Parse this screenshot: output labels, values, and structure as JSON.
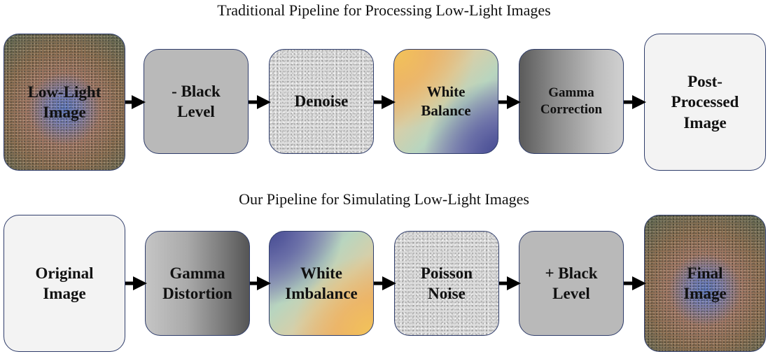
{
  "top_pipeline": {
    "title": "Traditional Pipeline for Processing Low-Light Images",
    "steps": [
      {
        "label": "Low-Light\nImage"
      },
      {
        "label": "- Black\nLevel"
      },
      {
        "label": "Denoise"
      },
      {
        "label": "White\nBalance"
      },
      {
        "label": "Gamma\nCorrection"
      },
      {
        "label": "Post-\nProcessed\nImage"
      }
    ]
  },
  "bottom_pipeline": {
    "title": "Our Pipeline for Simulating Low-Light Images",
    "steps": [
      {
        "label": "Original\nImage"
      },
      {
        "label": "Gamma\nDistortion"
      },
      {
        "label": "White\nImbalance"
      },
      {
        "label": "Poisson\nNoise"
      },
      {
        "label": "+ Black\nLevel"
      },
      {
        "label": "Final\nImage"
      }
    ]
  },
  "colors": {
    "box_border": "#2f3d6b",
    "arrow": "#000000",
    "gray_box": "#b9b9b9",
    "plain_box": "#f3f3f3"
  }
}
